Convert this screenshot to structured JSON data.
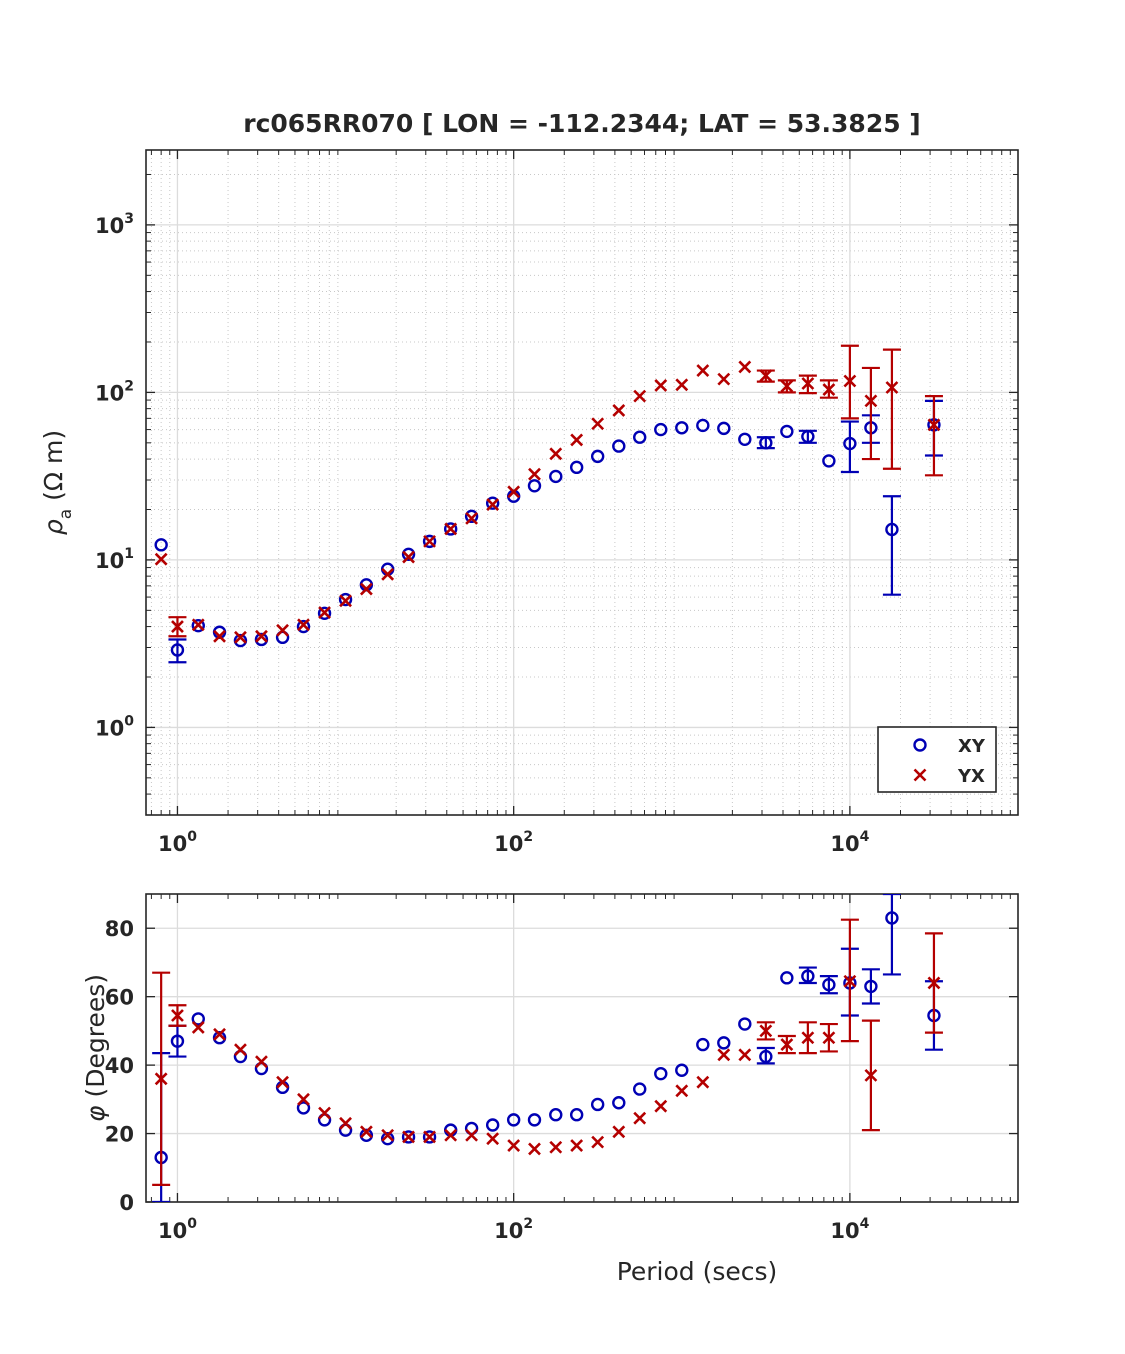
{
  "chart_data": [
    {
      "type": "scatter",
      "title": "rc065RR070 [ LON = -112.2344; LAT = 53.3825 ]",
      "xlabel": "",
      "ylabel_symbol": "ρ",
      "ylabel_subscript": "a",
      "ylabel_unit": "(Ω m)",
      "xscale": "log",
      "yscale": "log",
      "xlim": [
        0.65,
        100000
      ],
      "ylim": [
        0.3,
        2800
      ],
      "x_ticks": [
        {
          "base": "10",
          "exp": "0",
          "value": 1
        },
        {
          "base": "10",
          "exp": "2",
          "value": 100
        },
        {
          "base": "10",
          "exp": "4",
          "value": 10000
        }
      ],
      "y_ticks": [
        {
          "base": "10",
          "exp": "0",
          "value": 1
        },
        {
          "base": "10",
          "exp": "1",
          "value": 10
        },
        {
          "base": "10",
          "exp": "2",
          "value": 100
        },
        {
          "base": "10",
          "exp": "3",
          "value": 1000
        }
      ],
      "grid": true,
      "legend_position": "bottom-right",
      "series": [
        {
          "name": "XY",
          "marker": "circle",
          "color": "#0000b4",
          "points": [
            {
              "x": 0.8,
              "y": 12.3
            },
            {
              "x": 1.0,
              "y": 2.9,
              "lo": 2.45,
              "hi": 3.35
            },
            {
              "x": 1.33,
              "y": 4.05
            },
            {
              "x": 1.78,
              "y": 3.7
            },
            {
              "x": 2.37,
              "y": 3.3
            },
            {
              "x": 3.16,
              "y": 3.35
            },
            {
              "x": 4.22,
              "y": 3.45
            },
            {
              "x": 5.62,
              "y": 4.0
            },
            {
              "x": 7.5,
              "y": 4.8
            },
            {
              "x": 10.0,
              "y": 5.8
            },
            {
              "x": 13.3,
              "y": 7.1
            },
            {
              "x": 17.8,
              "y": 8.8
            },
            {
              "x": 23.7,
              "y": 10.8
            },
            {
              "x": 31.6,
              "y": 12.9
            },
            {
              "x": 42.2,
              "y": 15.3
            },
            {
              "x": 56.2,
              "y": 18.2
            },
            {
              "x": 75.0,
              "y": 21.8
            },
            {
              "x": 100,
              "y": 24.0
            },
            {
              "x": 133,
              "y": 27.7
            },
            {
              "x": 178,
              "y": 31.5
            },
            {
              "x": 237,
              "y": 35.7
            },
            {
              "x": 316,
              "y": 41.5
            },
            {
              "x": 422,
              "y": 47.8
            },
            {
              "x": 562,
              "y": 54.0
            },
            {
              "x": 750,
              "y": 60.0
            },
            {
              "x": 1000,
              "y": 61.5
            },
            {
              "x": 1334,
              "y": 63.5
            },
            {
              "x": 1778,
              "y": 61.0
            },
            {
              "x": 2371,
              "y": 52.5
            },
            {
              "x": 3162,
              "y": 50.0,
              "lo": 46.5,
              "hi": 54.0
            },
            {
              "x": 4217,
              "y": 58.5
            },
            {
              "x": 5623,
              "y": 54.5,
              "lo": 50.0,
              "hi": 59.0
            },
            {
              "x": 7499,
              "y": 39.0
            },
            {
              "x": 10000,
              "y": 49.5,
              "lo": 33.5,
              "hi": 67.0
            },
            {
              "x": 13335,
              "y": 61.5,
              "lo": 50.0,
              "hi": 73.0
            },
            {
              "x": 17783,
              "y": 15.2,
              "lo": 6.2,
              "hi": 24.0
            },
            {
              "x": 31623,
              "y": 64.0,
              "lo": 42.0,
              "hi": 89.0
            }
          ]
        },
        {
          "name": "YX",
          "marker": "x",
          "color": "#b40000",
          "points": [
            {
              "x": 0.8,
              "y": 10.1
            },
            {
              "x": 1.0,
              "y": 4.0,
              "lo": 3.5,
              "hi": 4.55
            },
            {
              "x": 1.33,
              "y": 4.1
            },
            {
              "x": 1.78,
              "y": 3.5
            },
            {
              "x": 2.37,
              "y": 3.45
            },
            {
              "x": 3.16,
              "y": 3.5
            },
            {
              "x": 4.22,
              "y": 3.8
            },
            {
              "x": 5.62,
              "y": 4.1
            },
            {
              "x": 7.5,
              "y": 4.85
            },
            {
              "x": 10.0,
              "y": 5.7
            },
            {
              "x": 13.3,
              "y": 6.7
            },
            {
              "x": 17.8,
              "y": 8.2
            },
            {
              "x": 23.7,
              "y": 10.4
            },
            {
              "x": 31.6,
              "y": 12.9
            },
            {
              "x": 42.2,
              "y": 15.3
            },
            {
              "x": 56.2,
              "y": 17.7
            },
            {
              "x": 75.0,
              "y": 21.4
            },
            {
              "x": 100,
              "y": 25.5
            },
            {
              "x": 133,
              "y": 32.5
            },
            {
              "x": 178,
              "y": 43.0
            },
            {
              "x": 237,
              "y": 52.0
            },
            {
              "x": 316,
              "y": 65.0
            },
            {
              "x": 422,
              "y": 78.0
            },
            {
              "x": 562,
              "y": 95.0
            },
            {
              "x": 750,
              "y": 110
            },
            {
              "x": 1000,
              "y": 111
            },
            {
              "x": 1334,
              "y": 135
            },
            {
              "x": 1778,
              "y": 120
            },
            {
              "x": 2371,
              "y": 142
            },
            {
              "x": 3162,
              "y": 126,
              "lo": 116,
              "hi": 135
            },
            {
              "x": 4217,
              "y": 109,
              "lo": 100,
              "hi": 118
            },
            {
              "x": 5623,
              "y": 113,
              "lo": 99,
              "hi": 126
            },
            {
              "x": 7499,
              "y": 104,
              "lo": 93,
              "hi": 118
            },
            {
              "x": 10000,
              "y": 117,
              "lo": 70,
              "hi": 190
            },
            {
              "x": 13335,
              "y": 89,
              "lo": 40,
              "hi": 140
            },
            {
              "x": 17783,
              "y": 107,
              "lo": 35,
              "hi": 180
            },
            {
              "x": 31623,
              "y": 64.0,
              "lo": 32,
              "hi": 95
            }
          ]
        }
      ]
    },
    {
      "type": "scatter",
      "title": "",
      "xlabel": "Period (secs)",
      "ylabel_symbol": "φ",
      "ylabel_unit": "(Degrees)",
      "xscale": "log",
      "yscale": "linear",
      "xlim": [
        0.65,
        100000
      ],
      "ylim": [
        0,
        90
      ],
      "x_ticks": [
        {
          "base": "10",
          "exp": "0",
          "value": 1
        },
        {
          "base": "10",
          "exp": "2",
          "value": 100
        },
        {
          "base": "10",
          "exp": "4",
          "value": 10000
        }
      ],
      "y_ticks": [
        0,
        20,
        40,
        60,
        80
      ],
      "grid": true,
      "series": [
        {
          "name": "XY",
          "marker": "circle",
          "color": "#0000b4",
          "points": [
            {
              "x": 0.8,
              "y": 13.0,
              "lo": 0.0,
              "hi": 43.5
            },
            {
              "x": 1.0,
              "y": 47.0,
              "lo": 42.5,
              "hi": 51.5
            },
            {
              "x": 1.33,
              "y": 53.5
            },
            {
              "x": 1.78,
              "y": 48.0
            },
            {
              "x": 2.37,
              "y": 42.5
            },
            {
              "x": 3.16,
              "y": 39.0
            },
            {
              "x": 4.22,
              "y": 33.5
            },
            {
              "x": 5.62,
              "y": 27.5
            },
            {
              "x": 7.5,
              "y": 24.0
            },
            {
              "x": 10.0,
              "y": 21.0
            },
            {
              "x": 13.3,
              "y": 19.5
            },
            {
              "x": 17.8,
              "y": 18.5
            },
            {
              "x": 23.7,
              "y": 19.0
            },
            {
              "x": 31.6,
              "y": 19.0
            },
            {
              "x": 42.2,
              "y": 21.0
            },
            {
              "x": 56.2,
              "y": 21.5
            },
            {
              "x": 75.0,
              "y": 22.5
            },
            {
              "x": 100,
              "y": 24.0
            },
            {
              "x": 133,
              "y": 24.0
            },
            {
              "x": 178,
              "y": 25.5
            },
            {
              "x": 237,
              "y": 25.5
            },
            {
              "x": 316,
              "y": 28.5
            },
            {
              "x": 422,
              "y": 29.0
            },
            {
              "x": 562,
              "y": 33.0
            },
            {
              "x": 750,
              "y": 37.5
            },
            {
              "x": 1000,
              "y": 38.5
            },
            {
              "x": 1334,
              "y": 46.0
            },
            {
              "x": 1778,
              "y": 46.5
            },
            {
              "x": 2371,
              "y": 52.0
            },
            {
              "x": 3162,
              "y": 42.5,
              "lo": 40.5,
              "hi": 45.0
            },
            {
              "x": 4217,
              "y": 65.5
            },
            {
              "x": 5623,
              "y": 66.0,
              "lo": 64.0,
              "hi": 68.5
            },
            {
              "x": 7499,
              "y": 63.5,
              "lo": 61.0,
              "hi": 66.0
            },
            {
              "x": 10000,
              "y": 64.0,
              "lo": 54.5,
              "hi": 74.0
            },
            {
              "x": 13335,
              "y": 63.0,
              "lo": 58.0,
              "hi": 68.0
            },
            {
              "x": 17783,
              "y": 83.0,
              "lo": 66.5,
              "hi": 90.0
            },
            {
              "x": 31623,
              "y": 54.5,
              "lo": 44.5,
              "hi": 64.5
            }
          ]
        },
        {
          "name": "YX",
          "marker": "x",
          "color": "#b40000",
          "points": [
            {
              "x": 0.8,
              "y": 36.0,
              "lo": 5.0,
              "hi": 67.0
            },
            {
              "x": 1.0,
              "y": 54.5,
              "lo": 51.5,
              "hi": 57.5
            },
            {
              "x": 1.33,
              "y": 51.0
            },
            {
              "x": 1.78,
              "y": 49.0
            },
            {
              "x": 2.37,
              "y": 44.5
            },
            {
              "x": 3.16,
              "y": 41.0
            },
            {
              "x": 4.22,
              "y": 35.0
            },
            {
              "x": 5.62,
              "y": 30.0
            },
            {
              "x": 7.5,
              "y": 26.0
            },
            {
              "x": 10.0,
              "y": 23.0
            },
            {
              "x": 13.3,
              "y": 20.5
            },
            {
              "x": 17.8,
              "y": 19.5
            },
            {
              "x": 23.7,
              "y": 19.0
            },
            {
              "x": 31.6,
              "y": 19.0
            },
            {
              "x": 42.2,
              "y": 19.5
            },
            {
              "x": 56.2,
              "y": 19.5
            },
            {
              "x": 75.0,
              "y": 18.5
            },
            {
              "x": 100,
              "y": 16.5
            },
            {
              "x": 133,
              "y": 15.5
            },
            {
              "x": 178,
              "y": 16.0
            },
            {
              "x": 237,
              "y": 16.5
            },
            {
              "x": 316,
              "y": 17.5
            },
            {
              "x": 422,
              "y": 20.5
            },
            {
              "x": 562,
              "y": 24.5
            },
            {
              "x": 750,
              "y": 28.0
            },
            {
              "x": 1000,
              "y": 32.5
            },
            {
              "x": 1334,
              "y": 35.0
            },
            {
              "x": 1778,
              "y": 43.0
            },
            {
              "x": 2371,
              "y": 43.0
            },
            {
              "x": 3162,
              "y": 50.0,
              "lo": 47.5,
              "hi": 52.5
            },
            {
              "x": 4217,
              "y": 46.0,
              "lo": 43.5,
              "hi": 48.5
            },
            {
              "x": 5623,
              "y": 48.0,
              "lo": 43.5,
              "hi": 52.5
            },
            {
              "x": 7499,
              "y": 48.0,
              "lo": 44.0,
              "hi": 52.0
            },
            {
              "x": 10000,
              "y": 64.5,
              "lo": 47.0,
              "hi": 82.5
            },
            {
              "x": 13335,
              "y": 37.0,
              "lo": 21.0,
              "hi": 53.0
            },
            {
              "x": 31623,
              "y": 64.0,
              "lo": 49.5,
              "hi": 78.5
            }
          ]
        }
      ]
    }
  ]
}
